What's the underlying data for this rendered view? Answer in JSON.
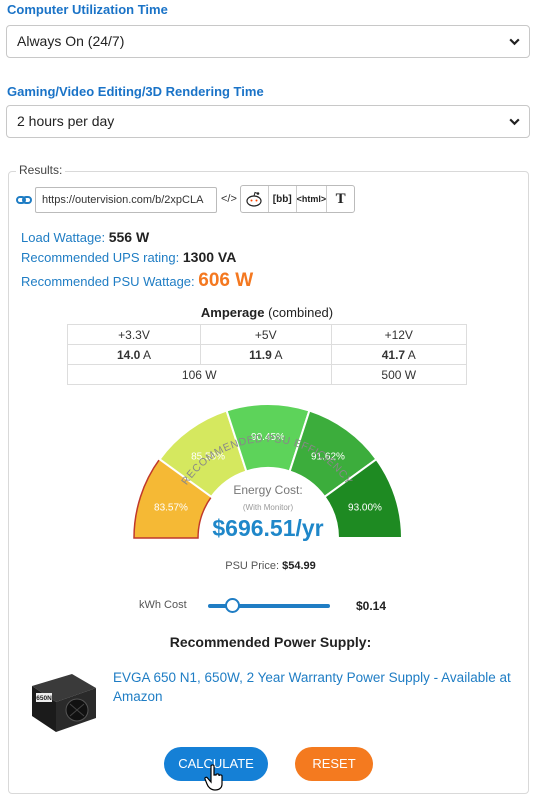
{
  "computer_usage": {
    "label": "Computer Utilization Time",
    "selected": "Always On (24/7)"
  },
  "gaming_usage": {
    "label": "Gaming/Video Editing/3D Rendering Time",
    "selected": "2 hours per day"
  },
  "results": {
    "legend": "Results:",
    "share_url": "https://outervision.com/b/2xpCLA",
    "share_buttons": {
      "embed": "</>",
      "bbcode": "[bb]",
      "html": "<html>",
      "text": "T"
    },
    "load_wattage": {
      "label": "Load Wattage:",
      "value": "556 W"
    },
    "ups_rating": {
      "label": "Recommended UPS rating:",
      "value": "1300 VA"
    },
    "psu_wattage": {
      "label": "Recommended PSU Wattage:",
      "value": "606 W"
    }
  },
  "amperage": {
    "title": "Amperage",
    "subtitle": "(combined)",
    "rails": [
      "+3.3V",
      "+5V",
      "+12V"
    ],
    "amps": [
      "14.0",
      "11.9",
      "41.7"
    ],
    "amp_unit": "A",
    "watts_low": "106 W",
    "watts_high": "500 W"
  },
  "efficiency_gauge": {
    "arc_title": "RECOMMENDED PSU EFFICIENCY",
    "segments": [
      {
        "label": "83.57%",
        "color": "#f5b935",
        "selected": true
      },
      {
        "label": "85.58%",
        "color": "#d5e85f"
      },
      {
        "label": "90.45%",
        "color": "#5dd35a"
      },
      {
        "label": "91.62%",
        "color": "#3cad3c"
      },
      {
        "label": "93.00%",
        "color": "#1e8a22"
      }
    ],
    "energy_cost_label": "Energy Cost:",
    "monitor_note": "(With Monitor)",
    "energy_cost_value": "$696.51/yr"
  },
  "psu_price": {
    "label": "PSU Price:",
    "value": "$54.99"
  },
  "kwh": {
    "label": "kWh Cost",
    "value": "$0.14",
    "slider_level": 0.2
  },
  "recommended": {
    "heading": "Recommended Power Supply:",
    "product_link": "EVGA 650 N1, 650W, 2 Year Warranty Power Supply - Available at Amazon",
    "product_badge": "650N"
  },
  "buttons": {
    "calculate": "CALCULATE",
    "reset": "RESET"
  },
  "colors": {
    "accent_blue": "#1a73c7",
    "orange": "#f47820",
    "cost_blue": "#1f87c9",
    "calculate_bg": "#1580d6",
    "reset_bg": "#f47a1f"
  }
}
